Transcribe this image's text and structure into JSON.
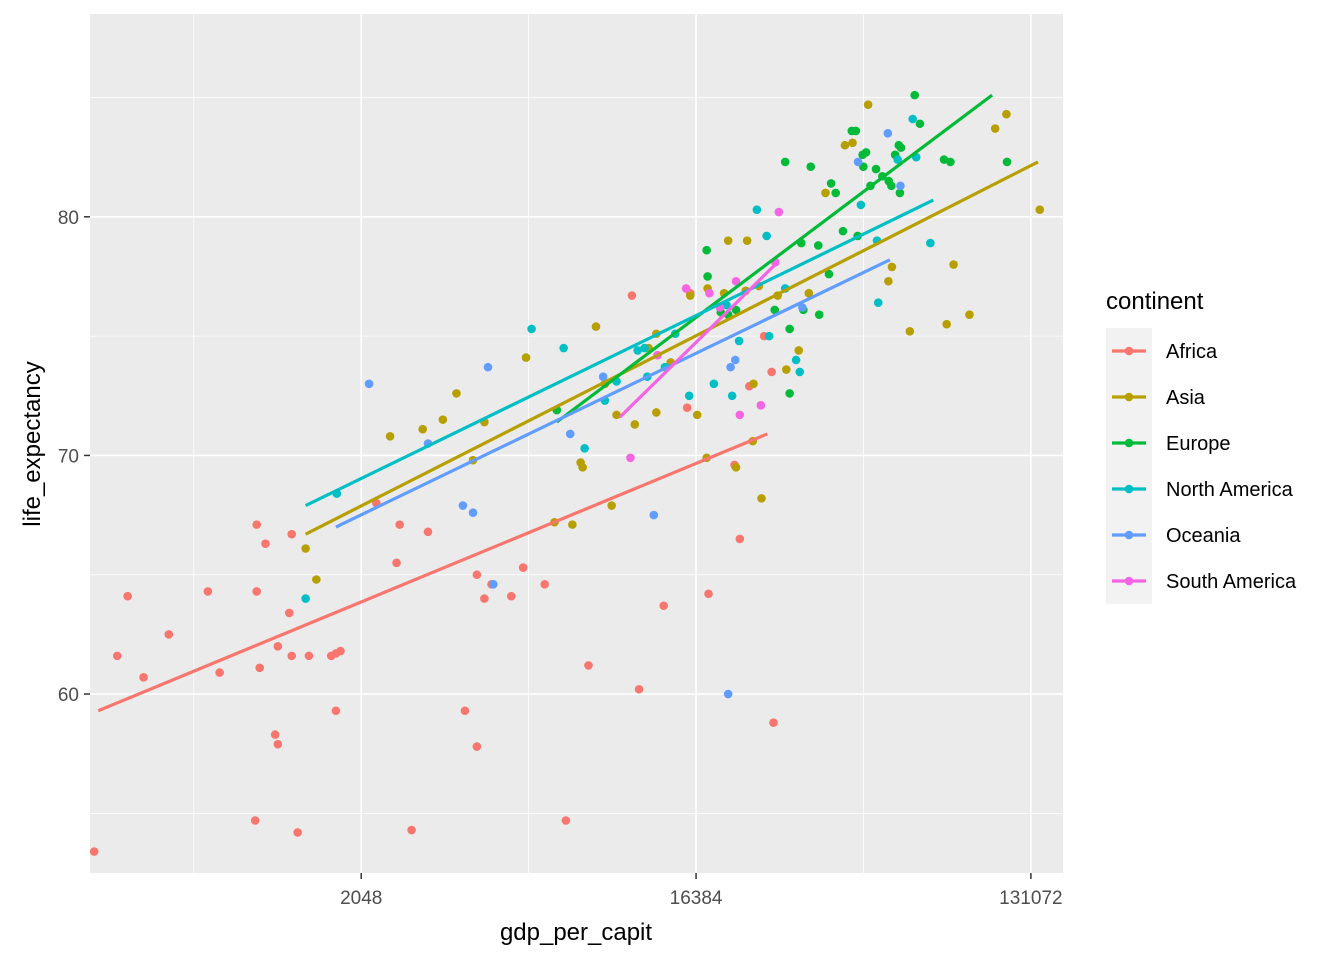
{
  "chart_data": {
    "type": "scatter",
    "title": "",
    "xlabel": "gdp_per_capit",
    "ylabel": "life_expectancy",
    "x_scale": "log2",
    "xlim": [
      380,
      160000
    ],
    "ylim": [
      52.5,
      88.5
    ],
    "x_ticks": [
      2048,
      16384,
      131072
    ],
    "x_tick_labels": [
      "2048",
      "16384",
      "131072"
    ],
    "y_ticks": [
      60,
      70,
      80
    ],
    "y_tick_labels": [
      "60",
      "70",
      "80"
    ],
    "grid": true,
    "legend": {
      "title": "continent",
      "position": "right"
    },
    "panel_background": "#ebebeb",
    "series": [
      {
        "name": "Africa",
        "color": "#F8766D",
        "trend": {
          "x": [
            400,
            25500
          ],
          "y": [
            59.3,
            70.9
          ]
        },
        "points": [
          [
            390,
            53.4
          ],
          [
            450,
            61.6
          ],
          [
            480,
            64.1
          ],
          [
            530,
            60.7
          ],
          [
            620,
            62.5
          ],
          [
            790,
            64.3
          ],
          [
            850,
            60.9
          ],
          [
            1070,
            67.1
          ],
          [
            1060,
            54.7
          ],
          [
            1070,
            64.3
          ],
          [
            1090,
            61.1
          ],
          [
            1130,
            66.3
          ],
          [
            1200,
            58.3
          ],
          [
            1220,
            57.9
          ],
          [
            1220,
            62.0
          ],
          [
            1310,
            63.4
          ],
          [
            1330,
            61.6
          ],
          [
            1330,
            66.7
          ],
          [
            1380,
            54.2
          ],
          [
            1480,
            61.6
          ],
          [
            1700,
            61.6
          ],
          [
            1750,
            59.3
          ],
          [
            1750,
            61.7
          ],
          [
            1800,
            61.8
          ],
          [
            2250,
            68.0
          ],
          [
            2600,
            67.1
          ],
          [
            2550,
            65.5
          ],
          [
            2800,
            54.3
          ],
          [
            3100,
            66.8
          ],
          [
            3900,
            59.3
          ],
          [
            4200,
            65.0
          ],
          [
            4200,
            57.8
          ],
          [
            4400,
            64.0
          ],
          [
            4600,
            64.6
          ],
          [
            5200,
            64.1
          ],
          [
            5600,
            65.3
          ],
          [
            6400,
            64.6
          ],
          [
            7300,
            54.7
          ],
          [
            8400,
            61.2
          ],
          [
            11000,
            76.7
          ],
          [
            11500,
            60.2
          ],
          [
            13400,
            63.7
          ],
          [
            15500,
            72.0
          ],
          [
            15800,
            76.8
          ],
          [
            17700,
            64.2
          ],
          [
            20800,
            69.6
          ],
          [
            21500,
            66.5
          ],
          [
            22800,
            72.9
          ],
          [
            25000,
            75.0
          ],
          [
            26200,
            73.5
          ],
          [
            26500,
            58.8
          ]
        ]
      },
      {
        "name": "Asia",
        "color": "#B79F00",
        "trend": {
          "x": [
            1450,
            137000
          ],
          "y": [
            66.7,
            82.3
          ]
        },
        "points": [
          [
            1450,
            66.1
          ],
          [
            1550,
            64.8
          ],
          [
            2450,
            70.8
          ],
          [
            3000,
            71.1
          ],
          [
            3400,
            71.5
          ],
          [
            3700,
            72.6
          ],
          [
            4100,
            69.8
          ],
          [
            4400,
            71.4
          ],
          [
            5700,
            74.1
          ],
          [
            6800,
            67.2
          ],
          [
            7600,
            67.1
          ],
          [
            8000,
            69.7
          ],
          [
            8100,
            69.5
          ],
          [
            8800,
            75.4
          ],
          [
            9300,
            73.0
          ],
          [
            9700,
            67.9
          ],
          [
            10000,
            71.7
          ],
          [
            11200,
            71.3
          ],
          [
            12200,
            74.5
          ],
          [
            12800,
            71.8
          ],
          [
            12800,
            75.1
          ],
          [
            14000,
            73.9
          ],
          [
            15800,
            76.7
          ],
          [
            16500,
            71.7
          ],
          [
            17500,
            69.9
          ],
          [
            17600,
            77.0
          ],
          [
            19500,
            76.8
          ],
          [
            20000,
            79.0
          ],
          [
            21000,
            69.5
          ],
          [
            22300,
            76.9
          ],
          [
            22500,
            79.0
          ],
          [
            23300,
            70.6
          ],
          [
            23400,
            73.0
          ],
          [
            24200,
            77.1
          ],
          [
            24600,
            68.2
          ],
          [
            27200,
            76.7
          ],
          [
            28700,
            73.6
          ],
          [
            31000,
            74.4
          ],
          [
            33000,
            76.8
          ],
          [
            36600,
            81.0
          ],
          [
            41300,
            83.0
          ],
          [
            43300,
            83.1
          ],
          [
            47700,
            84.7
          ],
          [
            54100,
            77.3
          ],
          [
            55300,
            77.9
          ],
          [
            61800,
            75.2
          ],
          [
            77700,
            75.5
          ],
          [
            81100,
            78.0
          ],
          [
            89500,
            75.9
          ],
          [
            105000,
            83.7
          ],
          [
            112600,
            84.3
          ],
          [
            138500,
            80.3
          ]
        ]
      },
      {
        "name": "Europe",
        "color": "#00BA38",
        "trend": {
          "x": [
            6900,
            103000
          ],
          "y": [
            71.4,
            85.1
          ]
        },
        "points": [
          [
            6900,
            71.9
          ],
          [
            17500,
            78.6
          ],
          [
            17600,
            77.5
          ],
          [
            19100,
            76.0
          ],
          [
            20000,
            75.9
          ],
          [
            21000,
            76.1
          ],
          [
            26700,
            76.1
          ],
          [
            28500,
            82.3
          ],
          [
            29300,
            72.6
          ],
          [
            29300,
            75.3
          ],
          [
            31500,
            78.9
          ],
          [
            31900,
            76.1
          ],
          [
            33400,
            82.1
          ],
          [
            35200,
            75.9
          ],
          [
            35000,
            78.8
          ],
          [
            37400,
            77.6
          ],
          [
            37900,
            81.4
          ],
          [
            39000,
            81.0
          ],
          [
            40800,
            79.4
          ],
          [
            43100,
            83.6
          ],
          [
            44200,
            83.6
          ],
          [
            44700,
            79.2
          ],
          [
            46100,
            82.6
          ],
          [
            46300,
            82.1
          ],
          [
            47100,
            82.7
          ],
          [
            48400,
            81.3
          ],
          [
            50100,
            82.0
          ],
          [
            52100,
            81.7
          ],
          [
            54200,
            81.5
          ],
          [
            55100,
            81.3
          ],
          [
            56400,
            82.6
          ],
          [
            57700,
            83.0
          ],
          [
            58100,
            81.0
          ],
          [
            58500,
            82.9
          ],
          [
            63700,
            85.1
          ],
          [
            65800,
            83.9
          ],
          [
            76400,
            82.4
          ],
          [
            79500,
            82.3
          ],
          [
            113000,
            82.3
          ]
        ]
      },
      {
        "name": "North America",
        "color": "#00BFC4",
        "trend": {
          "x": [
            1450,
            71500
          ],
          "y": [
            67.9,
            80.7
          ]
        },
        "points": [
          [
            1450,
            64.0
          ],
          [
            1760,
            68.4
          ],
          [
            5900,
            75.3
          ],
          [
            7200,
            74.5
          ],
          [
            8200,
            70.3
          ],
          [
            9300,
            72.3
          ],
          [
            10000,
            73.1
          ],
          [
            11400,
            74.4
          ],
          [
            11900,
            74.5
          ],
          [
            12100,
            73.3
          ],
          [
            13500,
            73.7
          ],
          [
            14400,
            75.1
          ],
          [
            15700,
            72.5
          ],
          [
            18300,
            73.0
          ],
          [
            19800,
            76.3
          ],
          [
            20500,
            72.5
          ],
          [
            21400,
            74.8
          ],
          [
            23900,
            80.3
          ],
          [
            25400,
            79.2
          ],
          [
            25800,
            75.0
          ],
          [
            28500,
            77.0
          ],
          [
            30500,
            74.0
          ],
          [
            31200,
            73.5
          ],
          [
            45600,
            80.5
          ],
          [
            50400,
            79.0
          ],
          [
            50800,
            76.4
          ],
          [
            57300,
            82.4
          ],
          [
            62900,
            84.1
          ],
          [
            64300,
            82.5
          ],
          [
            70200,
            78.9
          ]
        ]
      },
      {
        "name": "Oceania",
        "color": "#619CFF",
        "trend": {
          "x": [
            1750,
            54600
          ],
          "y": [
            67.0,
            78.2
          ]
        },
        "points": [
          [
            2150,
            73.0
          ],
          [
            3100,
            70.5
          ],
          [
            3850,
            67.9
          ],
          [
            4100,
            67.6
          ],
          [
            4500,
            73.7
          ],
          [
            4650,
            64.6
          ],
          [
            7500,
            70.9
          ],
          [
            9200,
            73.3
          ],
          [
            12600,
            67.5
          ],
          [
            20000,
            60.0
          ],
          [
            20300,
            73.7
          ],
          [
            20900,
            74.0
          ],
          [
            31700,
            76.2
          ],
          [
            44800,
            82.3
          ],
          [
            53900,
            83.5
          ],
          [
            58300,
            81.3
          ]
        ]
      },
      {
        "name": "South America",
        "color": "#F564E3",
        "trend": {
          "x": [
            10200,
            27200
          ],
          "y": [
            71.6,
            78.1
          ]
        },
        "points": [
          [
            10900,
            69.9
          ],
          [
            12900,
            74.2
          ],
          [
            15400,
            77.0
          ],
          [
            17800,
            76.8
          ],
          [
            19000,
            76.2
          ],
          [
            21000,
            77.3
          ],
          [
            21500,
            71.7
          ],
          [
            24500,
            72.1
          ],
          [
            26800,
            78.1
          ],
          [
            27400,
            80.2
          ]
        ]
      }
    ]
  }
}
